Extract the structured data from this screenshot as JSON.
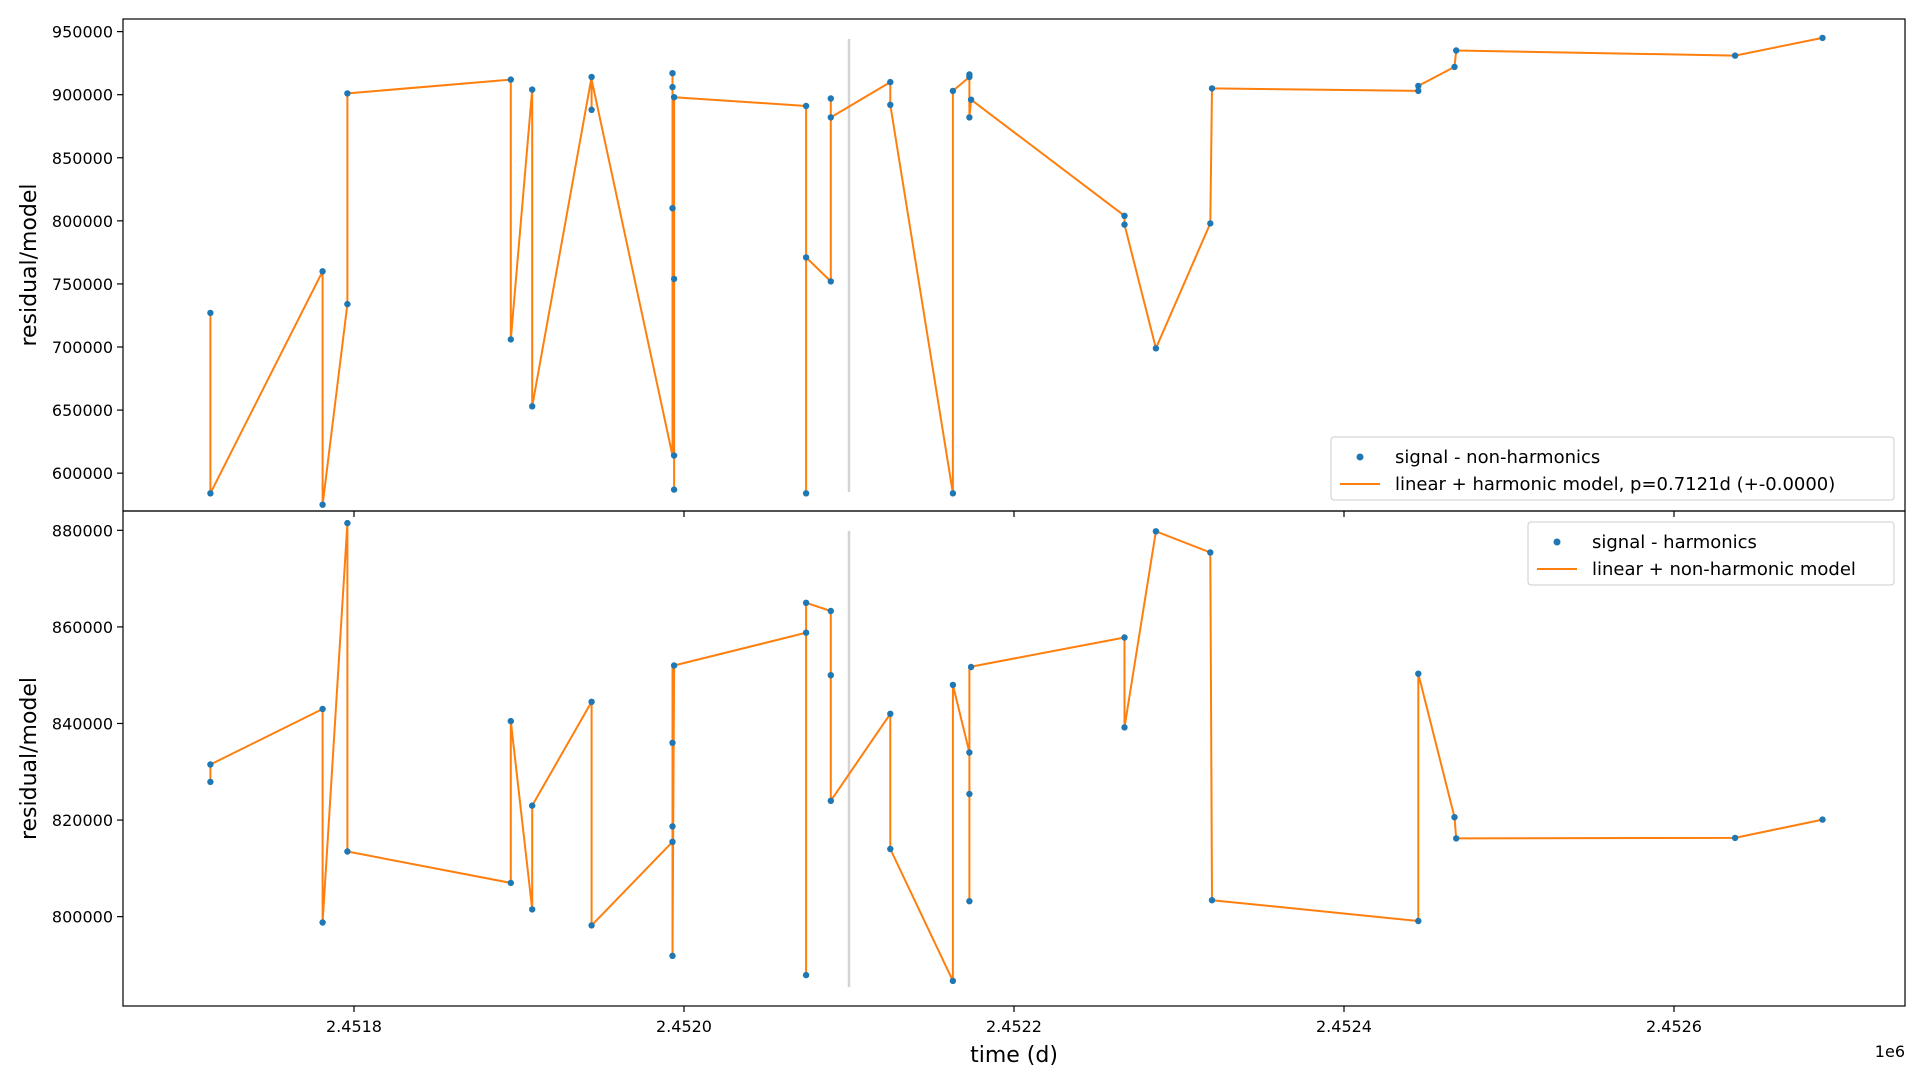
{
  "chart_data": [
    {
      "type": "scatter",
      "ylabel": "residual/model",
      "ylim": [
        570000,
        960000
      ],
      "yticks": [
        {
          "value": 600000,
          "label": "600000"
        },
        {
          "value": 650000,
          "label": "650000"
        },
        {
          "value": 700000,
          "label": "700000"
        },
        {
          "value": 750000,
          "label": "750000"
        },
        {
          "value": 800000,
          "label": "800000"
        },
        {
          "value": 850000,
          "label": "850000"
        },
        {
          "value": 900000,
          "label": "900000"
        },
        {
          "value": 950000,
          "label": "950000"
        }
      ],
      "legend_placement": "lower right",
      "legend": {
        "scatter": "signal - non-harmonics",
        "line": "linear + harmonic model, p=0.7121d (+-0.0000)"
      },
      "marker_color": "#1f77b4",
      "line_color": "#ff7f0e",
      "points": [
        [
          2451713,
          727000
        ],
        [
          2451713,
          584000
        ],
        [
          2451781,
          760000
        ],
        [
          2451781,
          575000
        ],
        [
          2451796,
          734000
        ],
        [
          2451796,
          901000
        ],
        [
          2451895,
          912000
        ],
        [
          2451895,
          706000
        ],
        [
          2451908,
          904000
        ],
        [
          2451908,
          653000
        ],
        [
          2451944,
          914000
        ],
        [
          2451944,
          888000
        ],
        [
          2451993,
          917000
        ],
        [
          2451993,
          906000
        ],
        [
          2451993,
          810000
        ],
        [
          2451994,
          754000
        ],
        [
          2451994,
          614000
        ],
        [
          2451994,
          587000
        ],
        [
          2451994,
          898000
        ],
        [
          2452074,
          891000
        ],
        [
          2452074,
          771000
        ],
        [
          2452074,
          584000
        ],
        [
          2452089,
          752000
        ],
        [
          2452089,
          897000
        ],
        [
          2452089,
          882000
        ],
        [
          2452125,
          910000
        ],
        [
          2452125,
          892000
        ],
        [
          2452163,
          584000
        ],
        [
          2452163,
          903000
        ],
        [
          2452173,
          914000
        ],
        [
          2452173,
          916000
        ],
        [
          2452173,
          882000
        ],
        [
          2452174,
          896000
        ],
        [
          2452267,
          804000
        ],
        [
          2452267,
          797000
        ],
        [
          2452286,
          699000
        ],
        [
          2452319,
          798000
        ],
        [
          2452320,
          905000
        ],
        [
          2452445,
          903000
        ],
        [
          2452445,
          907000
        ],
        [
          2452467,
          922000
        ],
        [
          2452468,
          935000
        ],
        [
          2452637,
          931000
        ],
        [
          2452690,
          945000
        ]
      ],
      "model_line": [
        [
          2451713,
          727000
        ],
        [
          2451713,
          584000
        ],
        [
          2451781,
          760000
        ],
        [
          2451781,
          575000
        ],
        [
          2451796,
          734000
        ],
        [
          2451796,
          901000
        ],
        [
          2451895,
          912000
        ],
        [
          2451895,
          706000
        ],
        [
          2451908,
          904000
        ],
        [
          2451908,
          653000
        ],
        [
          2451944,
          914000
        ],
        [
          2451944,
          888000
        ],
        [
          2451944,
          912000
        ],
        [
          2451993,
          614000
        ],
        [
          2451993,
          917000
        ],
        [
          2451993,
          906000
        ],
        [
          2451993,
          810000
        ],
        [
          2451994,
          754000
        ],
        [
          2451994,
          614000
        ],
        [
          2451994,
          587000
        ],
        [
          2451994,
          898000
        ],
        [
          2452074,
          891000
        ],
        [
          2452074,
          771000
        ],
        [
          2452074,
          584000
        ],
        [
          2452074,
          771000
        ],
        [
          2452089,
          752000
        ],
        [
          2452089,
          897000
        ],
        [
          2452089,
          882000
        ],
        [
          2452125,
          910000
        ],
        [
          2452125,
          892000
        ],
        [
          2452163,
          584000
        ],
        [
          2452163,
          903000
        ],
        [
          2452173,
          914000
        ],
        [
          2452173,
          916000
        ],
        [
          2452173,
          882000
        ],
        [
          2452174,
          896000
        ],
        [
          2452267,
          804000
        ],
        [
          2452267,
          797000
        ],
        [
          2452286,
          699000
        ],
        [
          2452319,
          798000
        ],
        [
          2452320,
          905000
        ],
        [
          2452445,
          903000
        ],
        [
          2452445,
          907000
        ],
        [
          2452467,
          922000
        ],
        [
          2452468,
          935000
        ],
        [
          2452637,
          931000
        ],
        [
          2452690,
          945000
        ]
      ],
      "vline_x": 2452100
    },
    {
      "type": "scatter",
      "ylabel": "residual/model",
      "xlabel": "time (d)",
      "xlim": [
        2451660,
        2452740
      ],
      "x_offset_label": "1e6",
      "xticks": [
        {
          "value": 2451800,
          "label": "2.4518"
        },
        {
          "value": 2452000,
          "label": "2.4520"
        },
        {
          "value": 2452200,
          "label": "2.4522"
        },
        {
          "value": 2452400,
          "label": "2.4524"
        },
        {
          "value": 2452600,
          "label": "2.4526"
        }
      ],
      "ylim": [
        781500,
        884000
      ],
      "yticks": [
        {
          "value": 800000,
          "label": "800000"
        },
        {
          "value": 820000,
          "label": "820000"
        },
        {
          "value": 840000,
          "label": "840000"
        },
        {
          "value": 860000,
          "label": "860000"
        },
        {
          "value": 880000,
          "label": "880000"
        }
      ],
      "legend_placement": "upper right",
      "legend": {
        "scatter": "signal - harmonics",
        "line": "linear + non-harmonic model"
      },
      "marker_color": "#1f77b4",
      "line_color": "#ff7f0e",
      "points": [
        [
          2451713,
          827900
        ],
        [
          2451713,
          831500
        ],
        [
          2451781,
          843000
        ],
        [
          2451781,
          798800
        ],
        [
          2451796,
          881500
        ],
        [
          2451796,
          813500
        ],
        [
          2451895,
          807000
        ],
        [
          2451895,
          840500
        ],
        [
          2451908,
          801500
        ],
        [
          2451908,
          823000
        ],
        [
          2451944,
          844500
        ],
        [
          2451944,
          798200
        ],
        [
          2451993,
          815500
        ],
        [
          2451993,
          791900
        ],
        [
          2451993,
          818700
        ],
        [
          2451993,
          836000
        ],
        [
          2451994,
          852000
        ],
        [
          2452074,
          858800
        ],
        [
          2452074,
          787900
        ],
        [
          2452074,
          865000
        ],
        [
          2452089,
          863300
        ],
        [
          2452089,
          850000
        ],
        [
          2452089,
          824000
        ],
        [
          2452125,
          842000
        ],
        [
          2452125,
          814000
        ],
        [
          2452163,
          786700
        ],
        [
          2452163,
          848000
        ],
        [
          2452173,
          834000
        ],
        [
          2452173,
          825400
        ],
        [
          2452173,
          803200
        ],
        [
          2452174,
          851700
        ],
        [
          2452267,
          857800
        ],
        [
          2452267,
          839200
        ],
        [
          2452286,
          879800
        ],
        [
          2452319,
          875400
        ],
        [
          2452320,
          803400
        ],
        [
          2452445,
          799100
        ],
        [
          2452445,
          850300
        ],
        [
          2452467,
          820600
        ],
        [
          2452468,
          816200
        ],
        [
          2452637,
          816300
        ],
        [
          2452690,
          820100
        ]
      ],
      "model_line": [
        [
          2451713,
          827900
        ],
        [
          2451713,
          831500
        ],
        [
          2451781,
          843000
        ],
        [
          2451781,
          798800
        ],
        [
          2451796,
          881500
        ],
        [
          2451796,
          813500
        ],
        [
          2451895,
          807000
        ],
        [
          2451895,
          840500
        ],
        [
          2451908,
          801500
        ],
        [
          2451908,
          823000
        ],
        [
          2451944,
          844500
        ],
        [
          2451944,
          798200
        ],
        [
          2451993,
          815500
        ],
        [
          2451993,
          852000
        ],
        [
          2451993,
          791900
        ],
        [
          2451994,
          852000
        ],
        [
          2452074,
          858800
        ],
        [
          2452074,
          787900
        ],
        [
          2452074,
          865000
        ],
        [
          2452089,
          863300
        ],
        [
          2452089,
          824000
        ],
        [
          2452125,
          842000
        ],
        [
          2452125,
          814000
        ],
        [
          2452163,
          786700
        ],
        [
          2452163,
          848000
        ],
        [
          2452173,
          834000
        ],
        [
          2452173,
          803200
        ],
        [
          2452173,
          851700
        ],
        [
          2452267,
          857800
        ],
        [
          2452267,
          839200
        ],
        [
          2452286,
          879800
        ],
        [
          2452319,
          875400
        ],
        [
          2452320,
          803400
        ],
        [
          2452445,
          799100
        ],
        [
          2452445,
          850300
        ],
        [
          2452467,
          820600
        ],
        [
          2452468,
          816200
        ],
        [
          2452637,
          816300
        ],
        [
          2452690,
          820100
        ]
      ],
      "vline_x": 2452100
    }
  ]
}
